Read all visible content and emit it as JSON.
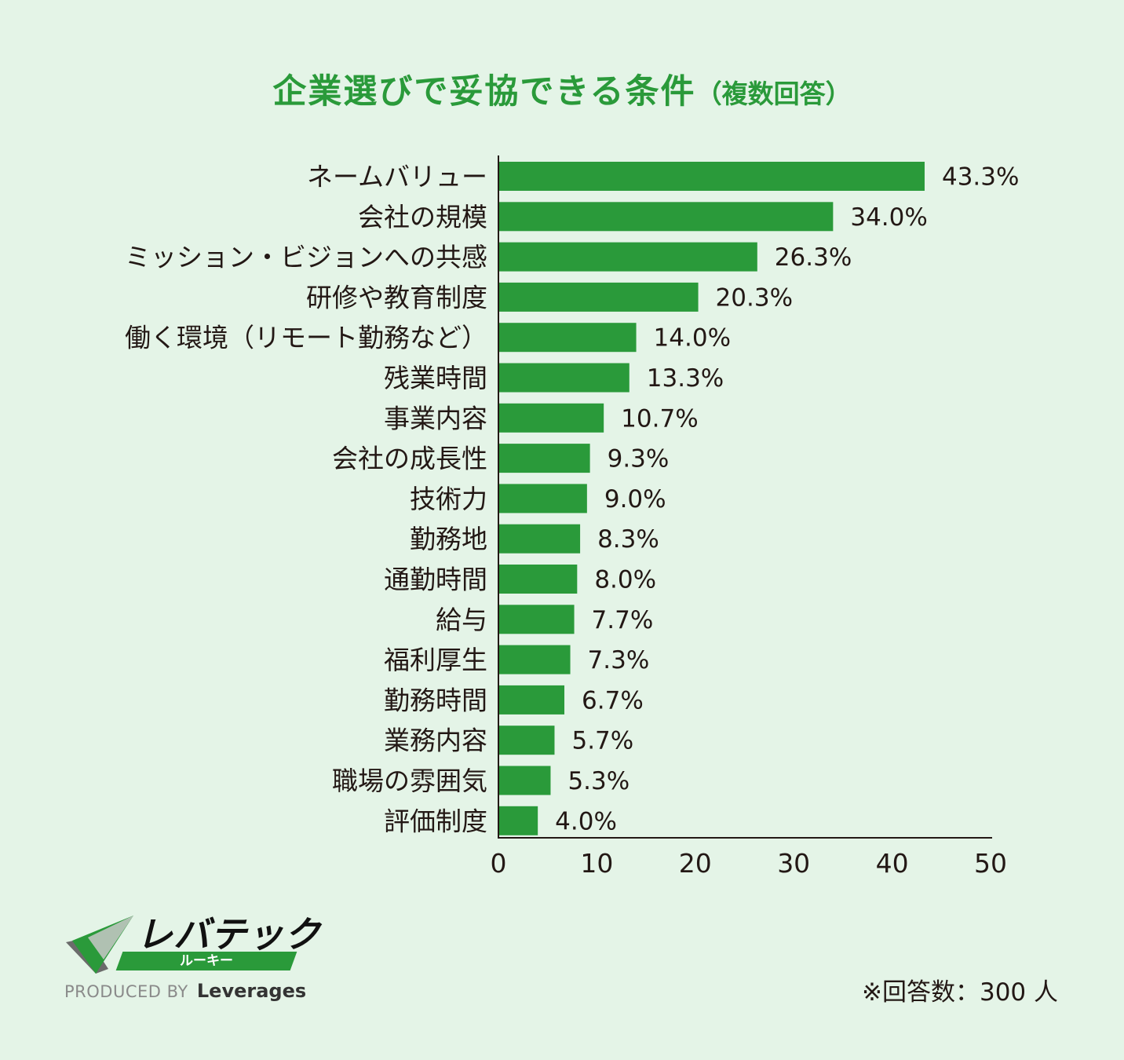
{
  "title": {
    "main": "企業選びで妥協できる条件",
    "sub": "（複数回答）"
  },
  "colors": {
    "bar": "#2a9a3a",
    "title": "#2a9a3a",
    "background": "#e4f4e7",
    "text": "#231815"
  },
  "chart_data": {
    "type": "bar",
    "orientation": "horizontal",
    "title": "企業選びで妥協できる条件（複数回答）",
    "categories": [
      "ネームバリュー",
      "会社の規模",
      "ミッション・ビジョンへの共感",
      "研修や教育制度",
      "働く環境（リモート勤務など）",
      "残業時間",
      "事業内容",
      "会社の成長性",
      "技術力",
      "勤務地",
      "通勤時間",
      "給与",
      "福利厚生",
      "勤務時間",
      "業務内容",
      "職場の雰囲気",
      "評価制度"
    ],
    "values": [
      43.3,
      34.0,
      26.3,
      20.3,
      14.0,
      13.3,
      10.7,
      9.3,
      9.0,
      8.3,
      8.0,
      7.7,
      7.3,
      6.7,
      5.7,
      5.3,
      4.0
    ],
    "value_labels": [
      "43.3%",
      "34.0%",
      "26.3%",
      "20.3%",
      "14.0%",
      "13.3%",
      "10.7%",
      "9.3%",
      "9.0%",
      "8.3%",
      "8.0%",
      "7.7%",
      "7.3%",
      "6.7%",
      "5.7%",
      "5.3%",
      "4.0%"
    ],
    "xlim": [
      0,
      50
    ],
    "xticks": [
      0,
      10,
      20,
      30,
      40,
      50
    ],
    "xlabel": "",
    "ylabel": "",
    "grid": false,
    "legend": "none"
  },
  "logo": {
    "brand": "レバテック",
    "sub": "ルーキー",
    "produced_by": "PRODUCED BY",
    "company": "Leverages"
  },
  "footnote": "※回答数：300 人"
}
